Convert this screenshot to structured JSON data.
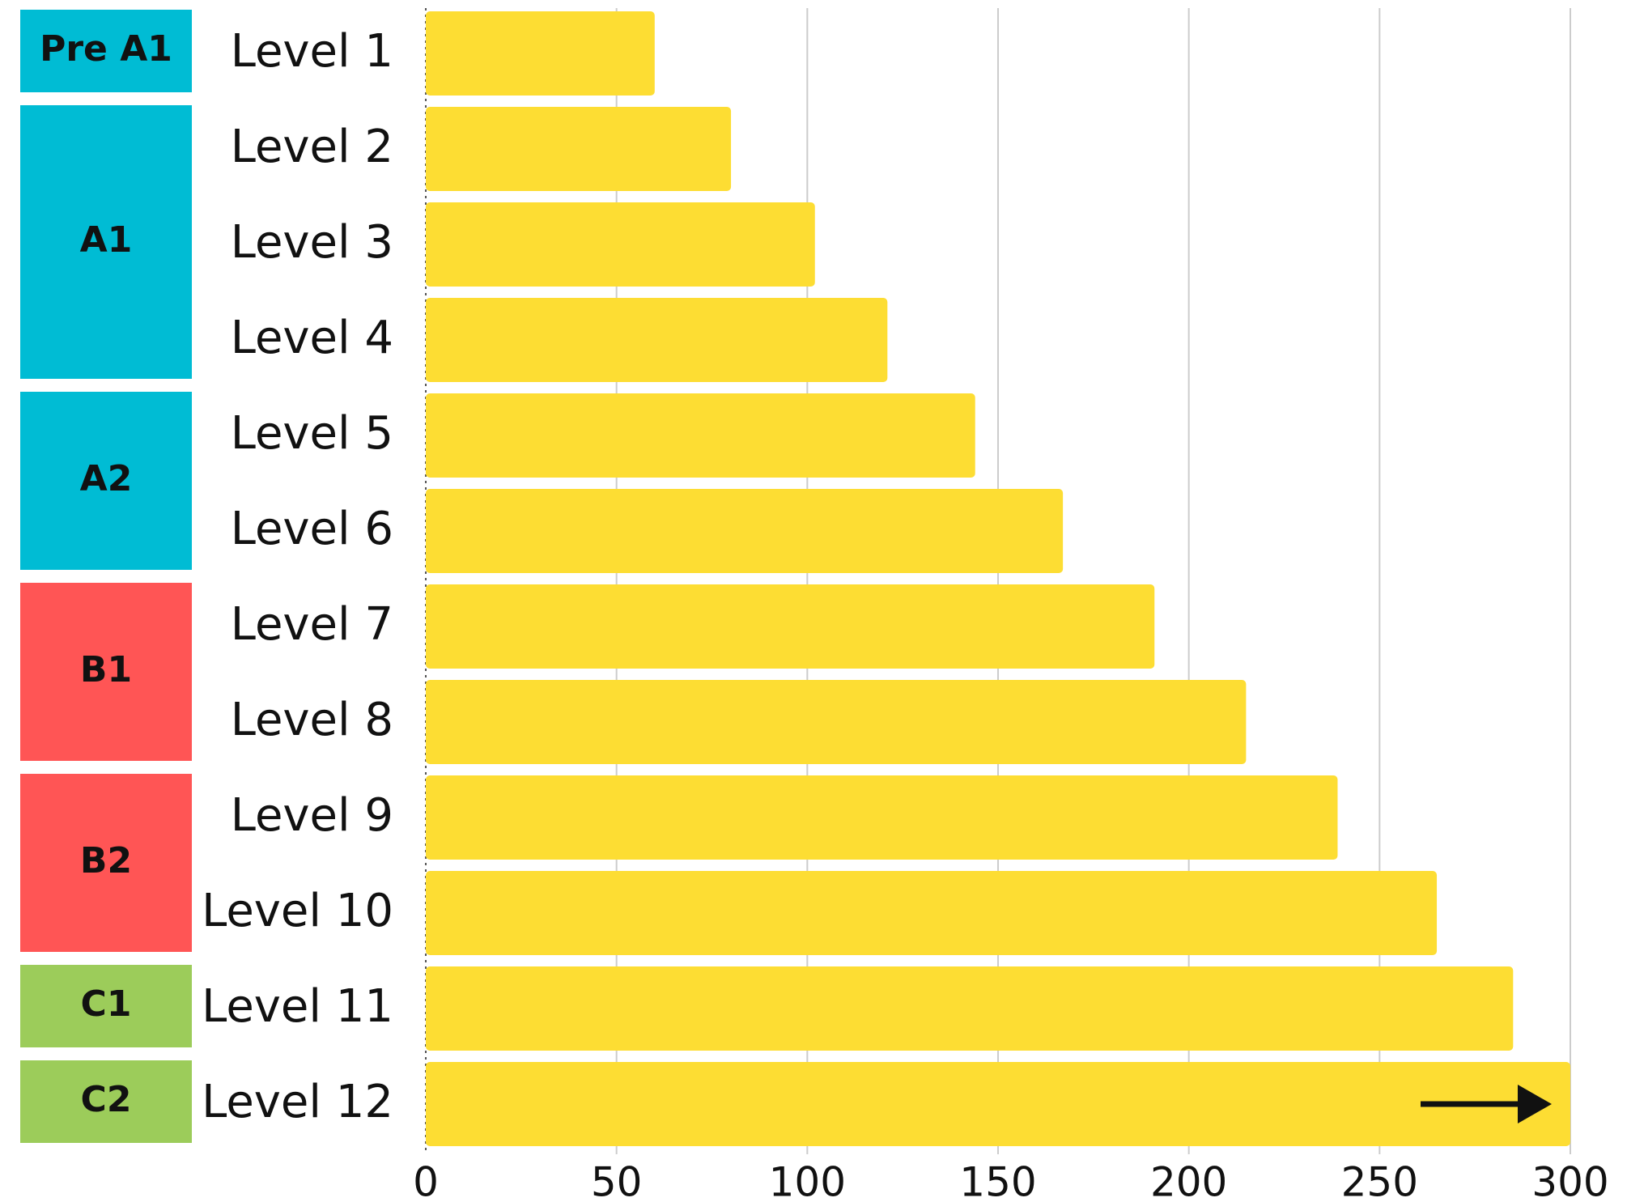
{
  "chart_data": {
    "type": "bar",
    "categories": [
      "Level 1",
      "Level 2",
      "Level 3",
      "Level 4",
      "Level 5",
      "Level 6",
      "Level 7",
      "Level 8",
      "Level 9",
      "Level 10",
      "Level 11",
      "Level 12"
    ],
    "values": [
      60,
      80,
      102,
      121,
      144,
      167,
      191,
      215,
      239,
      265,
      285,
      300
    ],
    "color": "#fddd33",
    "bands": [
      "Pre A1",
      "A1",
      "A1",
      "A1",
      "A2",
      "A2",
      "B1",
      "B1",
      "B2",
      "B2",
      "C1",
      "C2"
    ],
    "band_colors": [
      "#00bcd4",
      "#00bcd4",
      "#00bcd4",
      "#00bcd4",
      "#00bcd4",
      "#00bcd4",
      "#ff5555",
      "#ff5555",
      "#ff5555",
      "#ff5555",
      "#9ccc5a",
      "#9ccc5a"
    ],
    "xlim": [
      0,
      300
    ],
    "xticks": [
      0,
      50,
      100,
      150,
      200,
      250,
      300
    ],
    "grid": true
  }
}
